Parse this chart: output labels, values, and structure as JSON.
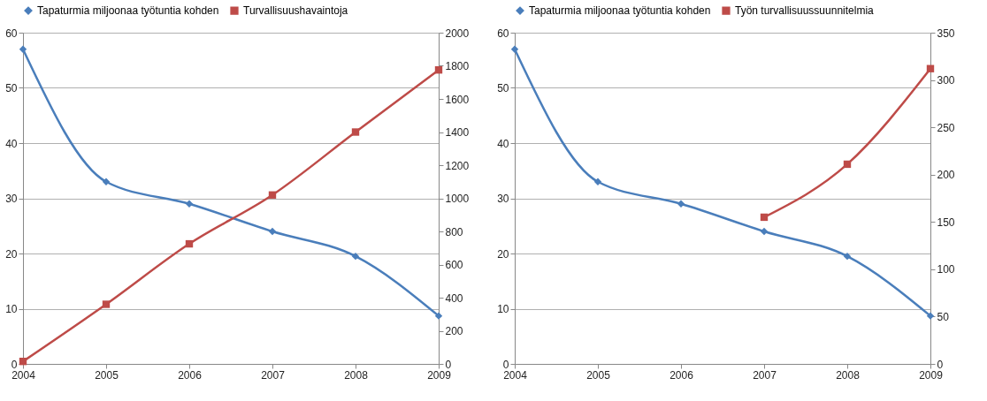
{
  "chart_data": [
    {
      "type": "line",
      "categories": [
        "2004",
        "2005",
        "2006",
        "2007",
        "2008",
        "2009"
      ],
      "ylim": [
        0,
        60
      ],
      "yticks": [
        0,
        10,
        20,
        30,
        40,
        50,
        60
      ],
      "y2lim": [
        0,
        2000
      ],
      "y2ticks": [
        0,
        200,
        400,
        600,
        800,
        1000,
        1200,
        1400,
        1600,
        1800,
        2000
      ],
      "grid": "y",
      "legend": "top",
      "series": [
        {
          "name": "Tapaturmia miljoonaa työtuntia kohden",
          "color": "#4a7ebb",
          "marker": "diamond",
          "values": [
            57,
            33,
            29,
            24,
            19.5,
            8.7
          ]
        },
        {
          "name": "Turvallisuushavaintoja",
          "color": "#be4b48",
          "marker": "square",
          "axis": "y2",
          "values": [
            15,
            360,
            725,
            1020,
            1400,
            1775
          ]
        }
      ]
    },
    {
      "type": "line",
      "categories": [
        "2004",
        "2005",
        "2006",
        "2007",
        "2008",
        "2009"
      ],
      "ylim": [
        0,
        60
      ],
      "yticks": [
        0,
        10,
        20,
        30,
        40,
        50,
        60
      ],
      "y2lim": [
        0,
        350
      ],
      "y2ticks": [
        0,
        50,
        100,
        150,
        200,
        250,
        300,
        350
      ],
      "grid": "y",
      "legend": "top",
      "series": [
        {
          "name": "Tapaturmia miljoonaa työtuntia kohden",
          "color": "#4a7ebb",
          "marker": "diamond",
          "values": [
            57,
            33,
            29,
            24,
            19.5,
            8.7
          ]
        },
        {
          "name": "Työn turvallisuussuunnitelmia",
          "color": "#be4b48",
          "marker": "square",
          "axis": "y2",
          "values": [
            null,
            null,
            null,
            155,
            211,
            312
          ]
        }
      ]
    }
  ]
}
